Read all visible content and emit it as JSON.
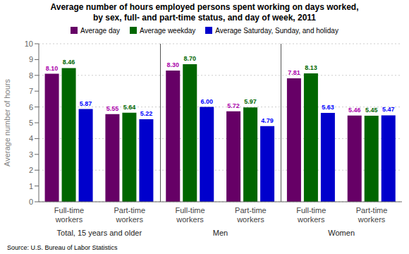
{
  "chart_data": {
    "type": "bar",
    "title": "Average number of hours employed persons spent working on days worked,",
    "subtitle": "by sex, full- and part-time status, and day of week, 2011",
    "ylabel": "Average number of hours",
    "source": "Source: U.S. Bureau of Labor Statistics",
    "categories": [
      "Full-time\nworkers",
      "Part-time\nworkers",
      "Full-time\nworkers",
      "Part-time\nworkers",
      "Full-time\nworkers",
      "Part-time\nworkers"
    ],
    "sections": [
      "Total, 15 years and older",
      "Men",
      "Women"
    ],
    "series": [
      {
        "name": "Average day",
        "color": "#660066",
        "label_color": "#aa00aa",
        "values": [
          8.1,
          5.55,
          8.3,
          5.72,
          7.81,
          5.46
        ],
        "value_labels": [
          "8.10",
          "5.55",
          "8.30",
          "5.72",
          "7.81",
          "5.46"
        ]
      },
      {
        "name": "Average weekday",
        "color": "#006600",
        "label_color": "#006600",
        "values": [
          8.46,
          5.64,
          8.7,
          5.97,
          8.13,
          5.45
        ],
        "value_labels": [
          "8.46",
          "5.64",
          "8.70",
          "5.97",
          "8.13",
          "5.45"
        ]
      },
      {
        "name": "Average Saturday, Sunday, and holiday",
        "color": "#0000cc",
        "label_color": "#0000ff",
        "values": [
          5.87,
          5.22,
          6.0,
          4.79,
          5.63,
          5.47
        ],
        "value_labels": [
          "5.87",
          "5.22",
          "6.00",
          "4.79",
          "5.63",
          "5.47"
        ]
      }
    ],
    "ylim": [
      0,
      10
    ],
    "yticks": [
      0,
      1,
      2,
      3,
      4,
      5,
      6,
      7,
      8,
      9,
      10
    ],
    "grid": true,
    "data_labels": true
  }
}
